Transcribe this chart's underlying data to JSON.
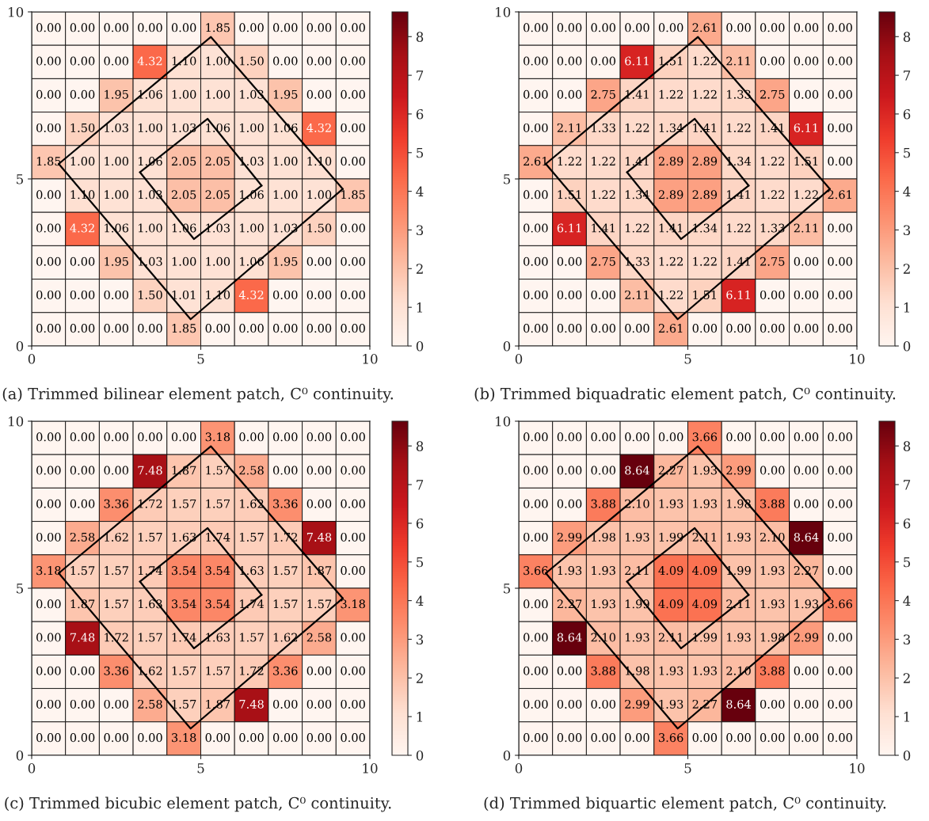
{
  "chart_data": [
    {
      "type": "heatmap",
      "title": "(a) Trimmed bilinear element patch, C⁰ continuity.",
      "xlim": [
        0,
        10
      ],
      "ylim": [
        0,
        10
      ],
      "xticks": [
        0,
        5,
        10
      ],
      "yticks": [
        0,
        5,
        10
      ],
      "clim": [
        0,
        8.64
      ],
      "cticks": [
        0,
        1,
        2,
        3,
        4,
        5,
        6,
        7,
        8
      ],
      "cells": [
        [
          0,
          0,
          0,
          0,
          0,
          1.85,
          0,
          0,
          0,
          0
        ],
        [
          0,
          0,
          0,
          4.32,
          1.1,
          1.0,
          1.5,
          0,
          0,
          0
        ],
        [
          0,
          0,
          1.95,
          1.06,
          1.0,
          1.0,
          1.03,
          1.95,
          0,
          0
        ],
        [
          0,
          1.5,
          1.03,
          1.0,
          1.03,
          1.06,
          1.0,
          1.06,
          4.32,
          0
        ],
        [
          1.85,
          1.0,
          1.0,
          1.06,
          2.05,
          2.05,
          1.03,
          1.0,
          1.1,
          0
        ],
        [
          0,
          1.1,
          1.0,
          1.03,
          2.05,
          2.05,
          1.06,
          1.0,
          1.0,
          1.85
        ],
        [
          0,
          4.32,
          1.06,
          1.0,
          1.06,
          1.03,
          1.0,
          1.03,
          1.5,
          0
        ],
        [
          0,
          0,
          1.95,
          1.03,
          1.0,
          1.0,
          1.06,
          1.95,
          0,
          0
        ],
        [
          0,
          0,
          0,
          1.5,
          1.01,
          1.1,
          4.32,
          0,
          0,
          0
        ],
        [
          0,
          0,
          0,
          0,
          1.85,
          0,
          0,
          0,
          0,
          0
        ]
      ],
      "cell_labels": [
        [
          "0.00",
          "0.00",
          "0.00",
          "0.00",
          "0.00",
          "1.85",
          "0.00",
          "0.00",
          "0.00",
          "0.00"
        ],
        [
          "0.00",
          "0.00",
          "0.00",
          "4.32",
          "1.10",
          "1.00",
          "1.50",
          "0.00",
          "0.00",
          "0.00"
        ],
        [
          "0.00",
          "0.00",
          "1.95",
          "1.06",
          "1.00",
          "1.00",
          "1.03",
          "1.95",
          "0.00",
          "0.00"
        ],
        [
          "0.00",
          "1.50",
          "1.03",
          "1.00",
          "1.03",
          "1.06",
          "1.00",
          "1.06",
          "4.32",
          "0.00"
        ],
        [
          "1.85",
          "1.00",
          "1.00",
          "1.06",
          "2.05",
          "2.05",
          "1.03",
          "1.00",
          "1.10",
          "0.00"
        ],
        [
          "0.00",
          "1.10",
          "1.00",
          "1.03",
          "2.05",
          "2.05",
          "1.06",
          "1.00",
          "1.00",
          "1.85"
        ],
        [
          "0.00",
          "4.32",
          "1.06",
          "1.00",
          "1.06",
          "1.03",
          "1.00",
          "1.03",
          "1.50",
          "0.00"
        ],
        [
          "0.00",
          "0.00",
          "1.95",
          "1.03",
          "1.00",
          "1.00",
          "1.06",
          "1.95",
          "0.00",
          "0.00"
        ],
        [
          "0.00",
          "0.00",
          "0.00",
          "1.50",
          "1.01",
          "1.10",
          "4.32",
          "0.00",
          "0.00",
          "0.00"
        ],
        [
          "0.00",
          "0.00",
          "0.00",
          "0.00",
          "1.85",
          "0.00",
          "0.00",
          "0.00",
          "0.00",
          "0.00"
        ]
      ],
      "series": [
        {
          "type": "line",
          "color": "#000000",
          "x": [
            0.8,
            5.3,
            9.2
          ],
          "values": [
            5.45,
            9.25,
            4.7
          ]
        },
        {
          "type": "line",
          "color": "#000000",
          "x": [
            0.8,
            4.7,
            9.2
          ],
          "values": [
            5.45,
            0.8,
            4.7
          ]
        },
        {
          "type": "line",
          "color": "#000000",
          "x": [
            3.2,
            5.2,
            6.8
          ],
          "values": [
            5.2,
            6.8,
            4.8
          ]
        },
        {
          "type": "line",
          "color": "#000000",
          "x": [
            3.2,
            4.8,
            6.8
          ],
          "values": [
            5.2,
            3.2,
            4.8
          ]
        }
      ]
    },
    {
      "type": "heatmap",
      "title": "(b) Trimmed biquadratic element patch, C⁰ continuity.",
      "xlim": [
        0,
        10
      ],
      "ylim": [
        0,
        10
      ],
      "xticks": [
        0,
        5,
        10
      ],
      "yticks": [
        0,
        5,
        10
      ],
      "clim": [
        0,
        8.64
      ],
      "cticks": [
        0,
        1,
        2,
        3,
        4,
        5,
        6,
        7,
        8
      ],
      "cells": [
        [
          0,
          0,
          0,
          0,
          0,
          2.61,
          0,
          0,
          0,
          0
        ],
        [
          0,
          0,
          0,
          6.11,
          1.51,
          1.22,
          2.11,
          0,
          0,
          0
        ],
        [
          0,
          0,
          2.75,
          1.41,
          1.22,
          1.22,
          1.33,
          2.75,
          0,
          0
        ],
        [
          0,
          2.11,
          1.33,
          1.22,
          1.34,
          1.41,
          1.22,
          1.41,
          6.11,
          0
        ],
        [
          2.61,
          1.22,
          1.22,
          1.41,
          2.89,
          2.89,
          1.34,
          1.22,
          1.51,
          0
        ],
        [
          0,
          1.51,
          1.22,
          1.34,
          2.89,
          2.89,
          1.41,
          1.22,
          1.22,
          2.61
        ],
        [
          0,
          6.11,
          1.41,
          1.22,
          1.41,
          1.34,
          1.22,
          1.33,
          2.11,
          0
        ],
        [
          0,
          0,
          2.75,
          1.33,
          1.22,
          1.22,
          1.41,
          2.75,
          0,
          0
        ],
        [
          0,
          0,
          0,
          2.11,
          1.22,
          1.51,
          6.11,
          0,
          0,
          0
        ],
        [
          0,
          0,
          0,
          0,
          2.61,
          0,
          0,
          0,
          0,
          0
        ]
      ],
      "cell_labels": [
        [
          "0.00",
          "0.00",
          "0.00",
          "0.00",
          "0.00",
          "2.61",
          "0.00",
          "0.00",
          "0.00",
          "0.00"
        ],
        [
          "0.00",
          "0.00",
          "0.00",
          "6.11",
          "1.51",
          "1.22",
          "2.11",
          "0.00",
          "0.00",
          "0.00"
        ],
        [
          "0.00",
          "0.00",
          "2.75",
          "1.41",
          "1.22",
          "1.22",
          "1.33",
          "2.75",
          "0.00",
          "0.00"
        ],
        [
          "0.00",
          "2.11",
          "1.33",
          "1.22",
          "1.34",
          "1.41",
          "1.22",
          "1.41",
          "6.11",
          "0.00"
        ],
        [
          "2.61",
          "1.22",
          "1.22",
          "1.41",
          "2.89",
          "2.89",
          "1.34",
          "1.22",
          "1.51",
          "0.00"
        ],
        [
          "0.00",
          "1.51",
          "1.22",
          "1.34",
          "2.89",
          "2.89",
          "1.41",
          "1.22",
          "1.22",
          "2.61"
        ],
        [
          "0.00",
          "6.11",
          "1.41",
          "1.22",
          "1.41",
          "1.34",
          "1.22",
          "1.33",
          "2.11",
          "0.00"
        ],
        [
          "0.00",
          "0.00",
          "2.75",
          "1.33",
          "1.22",
          "1.22",
          "1.41",
          "2.75",
          "0.00",
          "0.00"
        ],
        [
          "0.00",
          "0.00",
          "0.00",
          "2.11",
          "1.22",
          "1.51",
          "6.11",
          "0.00",
          "0.00",
          "0.00"
        ],
        [
          "0.00",
          "0.00",
          "0.00",
          "0.00",
          "2.61",
          "0.00",
          "0.00",
          "0.00",
          "0.00",
          "0.00"
        ]
      ],
      "series": [
        {
          "type": "line",
          "color": "#000000",
          "x": [
            0.8,
            5.3,
            9.2
          ],
          "values": [
            5.45,
            9.25,
            4.7
          ]
        },
        {
          "type": "line",
          "color": "#000000",
          "x": [
            0.8,
            4.7,
            9.2
          ],
          "values": [
            5.45,
            0.8,
            4.7
          ]
        },
        {
          "type": "line",
          "color": "#000000",
          "x": [
            3.2,
            5.2,
            6.8
          ],
          "values": [
            5.2,
            6.8,
            4.8
          ]
        },
        {
          "type": "line",
          "color": "#000000",
          "x": [
            3.2,
            4.8,
            6.8
          ],
          "values": [
            5.2,
            3.2,
            4.8
          ]
        }
      ]
    },
    {
      "type": "heatmap",
      "title": "(c) Trimmed bicubic element patch, C⁰ continuity.",
      "xlim": [
        0,
        10
      ],
      "ylim": [
        0,
        10
      ],
      "xticks": [
        0,
        5,
        10
      ],
      "yticks": [
        0,
        5,
        10
      ],
      "clim": [
        0,
        8.64
      ],
      "cticks": [
        0,
        1,
        2,
        3,
        4,
        5,
        6,
        7,
        8
      ],
      "cells": [
        [
          0,
          0,
          0,
          0,
          0,
          3.18,
          0,
          0,
          0,
          0
        ],
        [
          0,
          0,
          0,
          7.48,
          1.87,
          1.57,
          2.58,
          0,
          0,
          0
        ],
        [
          0,
          0,
          3.36,
          1.72,
          1.57,
          1.57,
          1.62,
          3.36,
          0,
          0
        ],
        [
          0,
          2.58,
          1.62,
          1.57,
          1.63,
          1.74,
          1.57,
          1.72,
          7.48,
          0
        ],
        [
          3.18,
          1.57,
          1.57,
          1.74,
          3.54,
          3.54,
          1.63,
          1.57,
          1.87,
          0
        ],
        [
          0,
          1.87,
          1.57,
          1.63,
          3.54,
          3.54,
          1.74,
          1.57,
          1.57,
          3.18
        ],
        [
          0,
          7.48,
          1.72,
          1.57,
          1.74,
          1.63,
          1.57,
          1.62,
          2.58,
          0
        ],
        [
          0,
          0,
          3.36,
          1.62,
          1.57,
          1.57,
          1.72,
          3.36,
          0,
          0
        ],
        [
          0,
          0,
          0,
          2.58,
          1.57,
          1.87,
          7.48,
          0,
          0,
          0
        ],
        [
          0,
          0,
          0,
          0,
          3.18,
          0,
          0,
          0,
          0,
          0
        ]
      ],
      "cell_labels": [
        [
          "0.00",
          "0.00",
          "0.00",
          "0.00",
          "0.00",
          "3.18",
          "0.00",
          "0.00",
          "0.00",
          "0.00"
        ],
        [
          "0.00",
          "0.00",
          "0.00",
          "7.48",
          "1.87",
          "1.57",
          "2.58",
          "0.00",
          "0.00",
          "0.00"
        ],
        [
          "0.00",
          "0.00",
          "3.36",
          "1.72",
          "1.57",
          "1.57",
          "1.62",
          "3.36",
          "0.00",
          "0.00"
        ],
        [
          "0.00",
          "2.58",
          "1.62",
          "1.57",
          "1.63",
          "1.74",
          "1.57",
          "1.72",
          "7.48",
          "0.00"
        ],
        [
          "3.18",
          "1.57",
          "1.57",
          "1.74",
          "3.54",
          "3.54",
          "1.63",
          "1.57",
          "1.87",
          "0.00"
        ],
        [
          "0.00",
          "1.87",
          "1.57",
          "1.63",
          "3.54",
          "3.54",
          "1.74",
          "1.57",
          "1.57",
          "3.18"
        ],
        [
          "0.00",
          "7.48",
          "1.72",
          "1.57",
          "1.74",
          "1.63",
          "1.57",
          "1.62",
          "2.58",
          "0.00"
        ],
        [
          "0.00",
          "0.00",
          "3.36",
          "1.62",
          "1.57",
          "1.57",
          "1.72",
          "3.36",
          "0.00",
          "0.00"
        ],
        [
          "0.00",
          "0.00",
          "0.00",
          "2.58",
          "1.57",
          "1.87",
          "7.48",
          "0.00",
          "0.00",
          "0.00"
        ],
        [
          "0.00",
          "0.00",
          "0.00",
          "0.00",
          "3.18",
          "0.00",
          "0.00",
          "0.00",
          "0.00",
          "0.00"
        ]
      ],
      "series": [
        {
          "type": "line",
          "color": "#000000",
          "x": [
            0.8,
            5.3,
            9.2
          ],
          "values": [
            5.45,
            9.25,
            4.7
          ]
        },
        {
          "type": "line",
          "color": "#000000",
          "x": [
            0.8,
            4.7,
            9.2
          ],
          "values": [
            5.45,
            0.8,
            4.7
          ]
        },
        {
          "type": "line",
          "color": "#000000",
          "x": [
            3.2,
            5.2,
            6.8
          ],
          "values": [
            5.2,
            6.8,
            4.8
          ]
        },
        {
          "type": "line",
          "color": "#000000",
          "x": [
            3.2,
            4.8,
            6.8
          ],
          "values": [
            5.2,
            3.2,
            4.8
          ]
        }
      ]
    },
    {
      "type": "heatmap",
      "title": "(d) Trimmed biquartic element patch, C⁰ continuity.",
      "xlim": [
        0,
        10
      ],
      "ylim": [
        0,
        10
      ],
      "xticks": [
        0,
        5,
        10
      ],
      "yticks": [
        0,
        5,
        10
      ],
      "clim": [
        0,
        8.64
      ],
      "cticks": [
        0,
        1,
        2,
        3,
        4,
        5,
        6,
        7,
        8
      ],
      "cells": [
        [
          0,
          0,
          0,
          0,
          0,
          3.66,
          0,
          0,
          0,
          0
        ],
        [
          0,
          0,
          0,
          8.64,
          2.27,
          1.93,
          2.99,
          0,
          0,
          0
        ],
        [
          0,
          0,
          3.88,
          2.1,
          1.93,
          1.93,
          1.98,
          3.88,
          0,
          0
        ],
        [
          0,
          2.99,
          1.98,
          1.93,
          1.99,
          2.11,
          1.93,
          2.1,
          8.64,
          0
        ],
        [
          3.66,
          1.93,
          1.93,
          2.11,
          4.09,
          4.09,
          1.99,
          1.93,
          2.27,
          0
        ],
        [
          0,
          2.27,
          1.93,
          1.99,
          4.09,
          4.09,
          2.11,
          1.93,
          1.93,
          3.66
        ],
        [
          0,
          8.64,
          2.1,
          1.93,
          2.11,
          1.99,
          1.93,
          1.98,
          2.99,
          0
        ],
        [
          0,
          0,
          3.88,
          1.98,
          1.93,
          1.93,
          2.1,
          3.88,
          0,
          0
        ],
        [
          0,
          0,
          0,
          2.99,
          1.93,
          2.27,
          8.64,
          0,
          0,
          0
        ],
        [
          0,
          0,
          0,
          0,
          3.66,
          0,
          0,
          0,
          0,
          0
        ]
      ],
      "cell_labels": [
        [
          "0.00",
          "0.00",
          "0.00",
          "0.00",
          "0.00",
          "3.66",
          "0.00",
          "0.00",
          "0.00",
          "0.00"
        ],
        [
          "0.00",
          "0.00",
          "0.00",
          "8.64",
          "2.27",
          "1.93",
          "2.99",
          "0.00",
          "0.00",
          "0.00"
        ],
        [
          "0.00",
          "0.00",
          "3.88",
          "2.10",
          "1.93",
          "1.93",
          "1.98",
          "3.88",
          "0.00",
          "0.00"
        ],
        [
          "0.00",
          "2.99",
          "1.98",
          "1.93",
          "1.99",
          "2.11",
          "1.93",
          "2.10",
          "8.64",
          "0.00"
        ],
        [
          "3.66",
          "1.93",
          "1.93",
          "2.11",
          "4.09",
          "4.09",
          "1.99",
          "1.93",
          "2.27",
          "0.00"
        ],
        [
          "0.00",
          "2.27",
          "1.93",
          "1.99",
          "4.09",
          "4.09",
          "2.11",
          "1.93",
          "1.93",
          "3.66"
        ],
        [
          "0.00",
          "8.64",
          "2.10",
          "1.93",
          "2.11",
          "1.99",
          "1.93",
          "1.98",
          "2.99",
          "0.00"
        ],
        [
          "0.00",
          "0.00",
          "3.88",
          "1.98",
          "1.93",
          "1.93",
          "2.10",
          "3.88",
          "0.00",
          "0.00"
        ],
        [
          "0.00",
          "0.00",
          "0.00",
          "2.99",
          "1.93",
          "2.27",
          "8.64",
          "0.00",
          "0.00",
          "0.00"
        ],
        [
          "0.00",
          "0.00",
          "0.00",
          "0.00",
          "3.66",
          "0.00",
          "0.00",
          "0.00",
          "0.00",
          "0.00"
        ]
      ],
      "series": [
        {
          "type": "line",
          "color": "#000000",
          "x": [
            0.8,
            5.3,
            9.2
          ],
          "values": [
            5.45,
            9.25,
            4.7
          ]
        },
        {
          "type": "line",
          "color": "#000000",
          "x": [
            0.8,
            4.7,
            9.2
          ],
          "values": [
            5.45,
            0.8,
            4.7
          ]
        },
        {
          "type": "line",
          "color": "#000000",
          "x": [
            3.2,
            5.2,
            6.8
          ],
          "values": [
            5.2,
            6.8,
            4.8
          ]
        },
        {
          "type": "line",
          "color": "#000000",
          "x": [
            3.2,
            4.8,
            6.8
          ],
          "values": [
            5.2,
            3.2,
            4.8
          ]
        }
      ]
    }
  ]
}
